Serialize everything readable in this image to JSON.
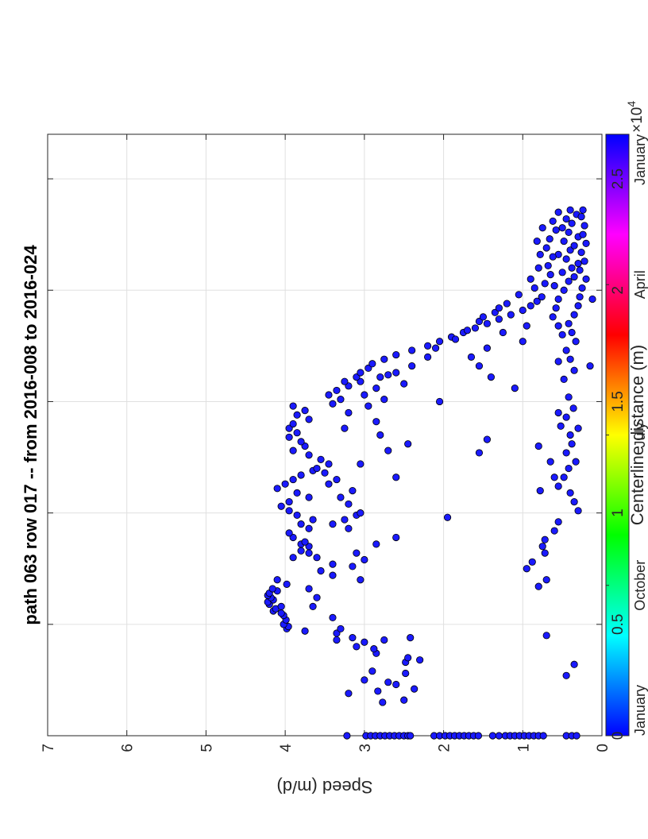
{
  "chart_data": {
    "type": "scatter",
    "title": "path 063 row 017  -- from 2016-008 to 2016-024",
    "xlabel": "Centerline distance (m)",
    "ylabel": "Speed (m/d)",
    "x_multiplier_label": "×10",
    "x_multiplier_exponent": "4",
    "xlim": [
      0,
      27000
    ],
    "ylim": [
      0,
      7
    ],
    "x_ticks": [
      0,
      5000,
      10000,
      15000,
      20000,
      25000
    ],
    "x_tick_labels": [
      "0",
      "0.5",
      "1",
      "1.5",
      "2",
      "2.5"
    ],
    "y_ticks": [
      0,
      1,
      2,
      3,
      4,
      5,
      6,
      7
    ],
    "y_tick_labels": [
      "0",
      "1",
      "2",
      "3",
      "4",
      "5",
      "6",
      "7"
    ],
    "grid": true,
    "rotated_90_ccw": true,
    "marker_color": "#1a1aff",
    "marker_edge_color": "#000000",
    "colorbar": {
      "colormap": "hsv",
      "position": "top",
      "labels": [
        "January",
        "October",
        "July",
        "April",
        "January"
      ],
      "label_positions": [
        0.0,
        0.25,
        0.5,
        0.75,
        1.0
      ]
    },
    "series": [
      {
        "points": [
          [
            0,
            3.22
          ],
          [
            0,
            2.98
          ],
          [
            0,
            2.92
          ],
          [
            0,
            2.86
          ],
          [
            0,
            2.8
          ],
          [
            0,
            2.74
          ],
          [
            0,
            2.68
          ],
          [
            0,
            2.62
          ],
          [
            0,
            2.56
          ],
          [
            0,
            2.5
          ],
          [
            0,
            2.45
          ],
          [
            0,
            2.42
          ],
          [
            0,
            2.12
          ],
          [
            0,
            2.05
          ],
          [
            0,
            1.98
          ],
          [
            0,
            1.92
          ],
          [
            0,
            1.86
          ],
          [
            0,
            1.8
          ],
          [
            0,
            1.74
          ],
          [
            0,
            1.68
          ],
          [
            0,
            1.62
          ],
          [
            0,
            1.56
          ],
          [
            0,
            1.38
          ],
          [
            0,
            1.3
          ],
          [
            0,
            1.22
          ],
          [
            0,
            1.16
          ],
          [
            0,
            1.1
          ],
          [
            0,
            1.04
          ],
          [
            0,
            0.98
          ],
          [
            0,
            0.92
          ],
          [
            0,
            0.86
          ],
          [
            0,
            0.8
          ],
          [
            0,
            0.74
          ],
          [
            0,
            0.45
          ],
          [
            0,
            0.38
          ],
          [
            0,
            0.32
          ],
          [
            1500,
            2.77
          ],
          [
            1600,
            2.5
          ],
          [
            1900,
            3.2
          ],
          [
            2000,
            2.83
          ],
          [
            2100,
            2.37
          ],
          [
            2300,
            2.6
          ],
          [
            2400,
            2.7
          ],
          [
            2500,
            3.0
          ],
          [
            2800,
            2.48
          ],
          [
            2900,
            2.9
          ],
          [
            3300,
            2.48
          ],
          [
            3400,
            2.3
          ],
          [
            3500,
            2.45
          ],
          [
            3700,
            2.85
          ],
          [
            3900,
            2.88
          ],
          [
            4300,
            2.75
          ],
          [
            4400,
            2.42
          ],
          [
            2700,
            0.45
          ],
          [
            3200,
            0.35
          ],
          [
            4500,
            0.7
          ],
          [
            4000,
            3.1
          ],
          [
            4200,
            3.0
          ],
          [
            4400,
            3.15
          ],
          [
            4600,
            3.35
          ],
          [
            4700,
            3.75
          ],
          [
            4800,
            3.98
          ],
          [
            4900,
            3.96
          ],
          [
            5000,
            4.02
          ],
          [
            5200,
            3.99
          ],
          [
            5400,
            4.02
          ],
          [
            5500,
            4.05
          ],
          [
            5600,
            4.15
          ],
          [
            5700,
            4.12
          ],
          [
            5800,
            4.05
          ],
          [
            5900,
            4.2
          ],
          [
            6000,
            4.22
          ],
          [
            6100,
            4.15
          ],
          [
            6200,
            4.18
          ],
          [
            6300,
            4.22
          ],
          [
            6400,
            4.2
          ],
          [
            6500,
            4.1
          ],
          [
            6600,
            4.16
          ],
          [
            6800,
            3.98
          ],
          [
            7000,
            4.1
          ],
          [
            4300,
            3.35
          ],
          [
            4800,
            3.3
          ],
          [
            5300,
            3.4
          ],
          [
            5800,
            3.65
          ],
          [
            6200,
            3.6
          ],
          [
            6600,
            3.7
          ],
          [
            7200,
            3.4
          ],
          [
            7400,
            3.55
          ],
          [
            7700,
            3.4
          ],
          [
            8000,
            3.6
          ],
          [
            8200,
            3.7
          ],
          [
            8600,
            3.8
          ],
          [
            7000,
            3.05
          ],
          [
            7600,
            3.15
          ],
          [
            7900,
            3.0
          ],
          [
            8200,
            3.1
          ],
          [
            8600,
            2.85
          ],
          [
            8900,
            2.6
          ],
          [
            9300,
            3.2
          ],
          [
            9500,
            3.4
          ],
          [
            9700,
            3.25
          ],
          [
            9900,
            3.1
          ],
          [
            8000,
            3.9
          ],
          [
            8300,
            3.8
          ],
          [
            8500,
            3.7
          ],
          [
            8700,
            3.75
          ],
          [
            8900,
            3.9
          ],
          [
            9100,
            3.95
          ],
          [
            9300,
            3.7
          ],
          [
            9500,
            3.8
          ],
          [
            9700,
            3.65
          ],
          [
            9900,
            3.85
          ],
          [
            10100,
            3.95
          ],
          [
            10300,
            4.05
          ],
          [
            10500,
            3.95
          ],
          [
            10700,
            3.7
          ],
          [
            10900,
            3.85
          ],
          [
            11100,
            4.1
          ],
          [
            11300,
            4.0
          ],
          [
            11500,
            3.9
          ],
          [
            11700,
            3.8
          ],
          [
            11900,
            3.65
          ],
          [
            10000,
            3.05
          ],
          [
            10400,
            3.2
          ],
          [
            10700,
            3.3
          ],
          [
            11000,
            3.15
          ],
          [
            11300,
            3.45
          ],
          [
            11500,
            3.35
          ],
          [
            11800,
            3.5
          ],
          [
            12000,
            3.6
          ],
          [
            12200,
            3.45
          ],
          [
            12400,
            3.55
          ],
          [
            12600,
            3.7
          ],
          [
            12800,
            3.9
          ],
          [
            13000,
            3.75
          ],
          [
            13200,
            3.8
          ],
          [
            13400,
            3.95
          ],
          [
            13600,
            3.85
          ],
          [
            13800,
            3.95
          ],
          [
            14000,
            3.9
          ],
          [
            14200,
            3.7
          ],
          [
            14400,
            3.85
          ],
          [
            14600,
            3.75
          ],
          [
            14800,
            3.9
          ],
          [
            11600,
            2.6
          ],
          [
            12200,
            3.05
          ],
          [
            12800,
            2.7
          ],
          [
            13100,
            2.45
          ],
          [
            13500,
            2.8
          ],
          [
            13800,
            3.25
          ],
          [
            14100,
            2.85
          ],
          [
            14500,
            3.2
          ],
          [
            14800,
            2.95
          ],
          [
            15100,
            2.75
          ],
          [
            15300,
            3.0
          ],
          [
            15600,
            2.85
          ],
          [
            15900,
            3.05
          ],
          [
            16100,
            2.8
          ],
          [
            16300,
            2.6
          ],
          [
            14900,
            3.4
          ],
          [
            15100,
            3.3
          ],
          [
            15300,
            3.45
          ],
          [
            15500,
            3.35
          ],
          [
            15700,
            3.2
          ],
          [
            15900,
            3.25
          ],
          [
            16100,
            3.1
          ],
          [
            16300,
            3.05
          ],
          [
            16500,
            2.95
          ],
          [
            16700,
            2.9
          ],
          [
            16900,
            2.75
          ],
          [
            17100,
            2.6
          ],
          [
            17300,
            2.4
          ],
          [
            17500,
            2.2
          ],
          [
            17700,
            2.05
          ],
          [
            17900,
            1.9
          ],
          [
            18100,
            1.75
          ],
          [
            18300,
            1.6
          ],
          [
            18500,
            1.45
          ],
          [
            18700,
            1.3
          ],
          [
            18900,
            1.15
          ],
          [
            19100,
            1.0
          ],
          [
            19300,
            0.9
          ],
          [
            19500,
            0.82
          ],
          [
            19700,
            0.76
          ],
          [
            15800,
            2.5
          ],
          [
            16200,
            2.7
          ],
          [
            16600,
            2.4
          ],
          [
            17000,
            2.2
          ],
          [
            17400,
            2.1
          ],
          [
            17800,
            1.85
          ],
          [
            18200,
            1.7
          ],
          [
            18600,
            1.55
          ],
          [
            19000,
            1.35
          ],
          [
            19400,
            1.2
          ],
          [
            19800,
            1.05
          ],
          [
            20100,
            0.85
          ],
          [
            9800,
            1.95
          ],
          [
            12700,
            1.55
          ],
          [
            13300,
            1.45
          ],
          [
            15000,
            2.05
          ],
          [
            15600,
            1.1
          ],
          [
            16100,
            1.4
          ],
          [
            16600,
            1.55
          ],
          [
            17000,
            1.65
          ],
          [
            17400,
            1.45
          ],
          [
            17700,
            1.0
          ],
          [
            18100,
            1.25
          ],
          [
            18400,
            0.95
          ],
          [
            18800,
            1.5
          ],
          [
            19200,
            1.3
          ],
          [
            6700,
            0.8
          ],
          [
            7000,
            0.7
          ],
          [
            7500,
            0.95
          ],
          [
            7800,
            0.88
          ],
          [
            8200,
            0.72
          ],
          [
            8500,
            0.75
          ],
          [
            8800,
            0.72
          ],
          [
            9200,
            0.6
          ],
          [
            9600,
            0.55
          ],
          [
            10100,
            0.3
          ],
          [
            10500,
            0.35
          ],
          [
            10900,
            0.4
          ],
          [
            11200,
            0.55
          ],
          [
            11600,
            0.48
          ],
          [
            12000,
            0.42
          ],
          [
            12300,
            0.33
          ],
          [
            12700,
            0.45
          ],
          [
            13100,
            0.38
          ],
          [
            13500,
            0.4
          ],
          [
            13900,
            0.52
          ],
          [
            14300,
            0.45
          ],
          [
            14700,
            0.36
          ],
          [
            11000,
            0.78
          ],
          [
            11600,
            0.6
          ],
          [
            12300,
            0.65
          ],
          [
            13000,
            0.8
          ],
          [
            13800,
            0.3
          ],
          [
            14500,
            0.55
          ],
          [
            15200,
            0.42
          ],
          [
            16000,
            0.48
          ],
          [
            16400,
            0.35
          ],
          [
            16800,
            0.55
          ],
          [
            16900,
            0.4
          ],
          [
            17300,
            0.45
          ],
          [
            17700,
            0.33
          ],
          [
            18100,
            0.38
          ],
          [
            18500,
            0.42
          ],
          [
            18900,
            0.35
          ],
          [
            19300,
            0.3
          ],
          [
            19700,
            0.28
          ],
          [
            19600,
            0.55
          ],
          [
            19200,
            0.58
          ],
          [
            18800,
            0.62
          ],
          [
            18400,
            0.55
          ],
          [
            18000,
            0.5
          ],
          [
            16600,
            0.15
          ],
          [
            19600,
            0.12
          ],
          [
            20000,
            0.48
          ],
          [
            20200,
            0.6
          ],
          [
            20400,
            0.42
          ],
          [
            20600,
            0.35
          ],
          [
            20800,
            0.5
          ],
          [
            21000,
            0.38
          ],
          [
            21200,
            0.3
          ],
          [
            21400,
            0.45
          ],
          [
            21600,
            0.55
          ],
          [
            21800,
            0.4
          ],
          [
            22000,
            0.35
          ],
          [
            22200,
            0.48
          ],
          [
            22400,
            0.3
          ],
          [
            22600,
            0.42
          ],
          [
            22800,
            0.5
          ],
          [
            23000,
            0.38
          ],
          [
            23200,
            0.45
          ],
          [
            23400,
            0.32
          ],
          [
            23600,
            0.4
          ],
          [
            20100,
            0.25
          ],
          [
            20500,
            0.2
          ],
          [
            20900,
            0.28
          ],
          [
            21300,
            0.22
          ],
          [
            21700,
            0.26
          ],
          [
            22100,
            0.2
          ],
          [
            22500,
            0.24
          ],
          [
            22900,
            0.22
          ],
          [
            23300,
            0.26
          ],
          [
            23600,
            0.24
          ],
          [
            20300,
            0.72
          ],
          [
            20700,
            0.65
          ],
          [
            21100,
            0.68
          ],
          [
            21500,
            0.62
          ],
          [
            21900,
            0.7
          ],
          [
            22300,
            0.66
          ],
          [
            22700,
            0.58
          ],
          [
            23100,
            0.62
          ],
          [
            23500,
            0.55
          ],
          [
            20500,
            0.9
          ],
          [
            21000,
            0.8
          ],
          [
            21600,
            0.78
          ],
          [
            22200,
            0.82
          ],
          [
            22800,
            0.75
          ]
        ]
      }
    ]
  }
}
